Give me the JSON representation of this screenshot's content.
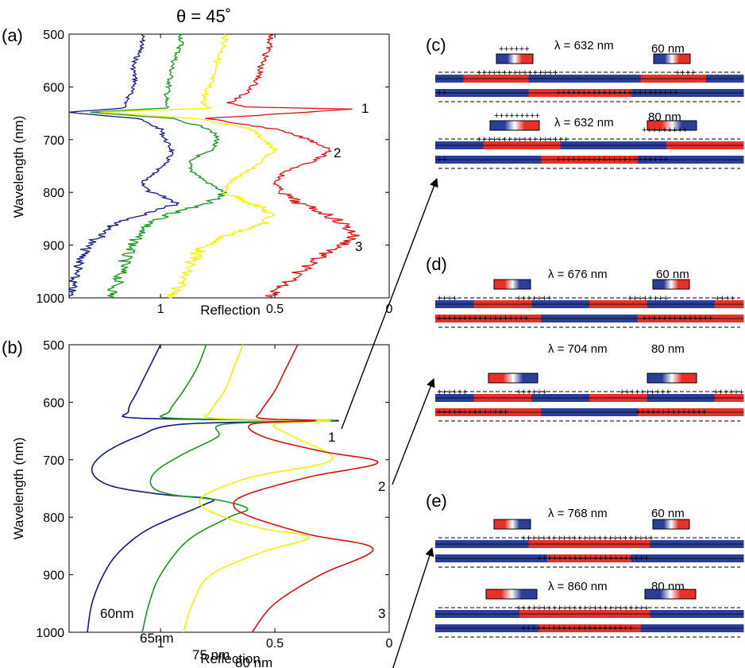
{
  "figure": {
    "theta_label": "θ = 45˚",
    "panel_labels": {
      "a": "(a)",
      "b": "(b)",
      "c": "(c)",
      "d": "(d)",
      "e": "(e)"
    },
    "colors": {
      "60nm": "#101a80",
      "65nm": "#17961f",
      "75nm": "#f5f000",
      "80nm": "#d81010",
      "field_red": "#e8302a",
      "field_blue": "#2a3e9a"
    }
  },
  "chart_data": [
    {
      "id": "a",
      "type": "line",
      "subtitle": "θ = 45˚",
      "xlabel": "Reflection",
      "ylabel": "Wavelength (nm)",
      "x_ticks": [
        "1",
        "0.5",
        "0"
      ],
      "y_ticks": [
        "500",
        "600",
        "700",
        "800",
        "900",
        "1000"
      ],
      "ylim": [
        500,
        1000
      ],
      "xlim": [
        1.4,
        0
      ],
      "x_axis_reversed": true,
      "annotations": [
        "1",
        "2",
        "3"
      ],
      "series": [
        {
          "color": "#101a80",
          "x": [
            1.08,
            1.08,
            1.1,
            1.12,
            1.11,
            1.13,
            1.15,
            1.16,
            1.4,
            1.1,
            1.0,
            0.98,
            0.95,
            0.97,
            1.02,
            1.08,
            1.05,
            0.92,
            1.05,
            1.2,
            1.25,
            1.32,
            1.34,
            1.38,
            1.4
          ],
          "y": [
            500,
            520,
            540,
            560,
            590,
            610,
            630,
            640,
            648,
            660,
            680,
            700,
            720,
            740,
            760,
            780,
            800,
            820,
            840,
            860,
            880,
            900,
            920,
            960,
            1000
          ]
        },
        {
          "color": "#17961f",
          "x": [
            0.91,
            0.91,
            0.93,
            0.95,
            0.96,
            0.97,
            0.98,
            0.97,
            1.32,
            0.95,
            0.78,
            0.75,
            0.78,
            0.88,
            0.86,
            0.8,
            0.72,
            0.8,
            0.95,
            1.05,
            1.1,
            1.12,
            1.15,
            1.18,
            1.22
          ],
          "y": [
            500,
            520,
            540,
            560,
            590,
            610,
            630,
            640,
            648,
            660,
            680,
            700,
            720,
            740,
            760,
            780,
            800,
            820,
            840,
            860,
            880,
            900,
            920,
            960,
            1000
          ]
        },
        {
          "color": "#f5f000",
          "x": [
            0.72,
            0.72,
            0.74,
            0.76,
            0.78,
            0.8,
            0.82,
            0.78,
            1.25,
            0.85,
            0.6,
            0.55,
            0.5,
            0.56,
            0.62,
            0.7,
            0.72,
            0.6,
            0.52,
            0.55,
            0.7,
            0.8,
            0.85,
            0.9,
            0.95
          ],
          "y": [
            500,
            520,
            540,
            560,
            590,
            610,
            630,
            640,
            648,
            660,
            680,
            700,
            720,
            740,
            760,
            780,
            800,
            820,
            840,
            860,
            880,
            900,
            920,
            960,
            1000
          ]
        },
        {
          "color": "#d81010",
          "x": [
            0.52,
            0.52,
            0.54,
            0.56,
            0.58,
            0.62,
            0.7,
            0.62,
            0.15,
            0.8,
            0.5,
            0.35,
            0.25,
            0.33,
            0.45,
            0.5,
            0.47,
            0.4,
            0.28,
            0.2,
            0.15,
            0.2,
            0.3,
            0.42,
            0.52
          ],
          "y": [
            500,
            520,
            540,
            560,
            590,
            610,
            630,
            638,
            642,
            660,
            680,
            700,
            720,
            740,
            760,
            780,
            800,
            820,
            840,
            860,
            880,
            900,
            920,
            960,
            1000
          ]
        }
      ]
    },
    {
      "id": "b",
      "type": "line",
      "xlabel": "Reflection",
      "ylabel": "Wavelength (nm)",
      "x_ticks": [
        "1",
        "0.5",
        "0"
      ],
      "y_ticks": [
        "500",
        "600",
        "700",
        "800",
        "900",
        "1000"
      ],
      "ylim": [
        500,
        1000
      ],
      "xlim": [
        1.4,
        0
      ],
      "x_axis_reversed": true,
      "annotations": [
        "1",
        "2",
        "3"
      ],
      "series": [
        {
          "name": "60nm",
          "color": "#101a80",
          "x": [
            1.0,
            1.05,
            1.1,
            1.14,
            1.08,
            0.22,
            0.9,
            1.1,
            1.25,
            1.3,
            1.22,
            1.0,
            0.78,
            0.82,
            1.05,
            1.18,
            1.25,
            1.3,
            1.32
          ],
          "y": [
            500,
            540,
            580,
            615,
            628,
            632,
            638,
            660,
            690,
            720,
            745,
            760,
            768,
            780,
            820,
            860,
            900,
            950,
            1000
          ]
        },
        {
          "name": "65nm",
          "color": "#17961f",
          "x": [
            0.8,
            0.84,
            0.9,
            0.96,
            0.94,
            0.24,
            0.72,
            0.75,
            0.9,
            1.02,
            1.04,
            0.96,
            0.75,
            0.62,
            0.7,
            0.88,
            1.0,
            1.05,
            1.08
          ],
          "y": [
            500,
            540,
            580,
            615,
            628,
            632,
            638,
            660,
            690,
            720,
            745,
            760,
            770,
            785,
            800,
            840,
            900,
            950,
            1000
          ]
        },
        {
          "name": "75 nm",
          "color": "#f5f000",
          "x": [
            0.64,
            0.68,
            0.72,
            0.78,
            0.76,
            0.26,
            0.5,
            0.42,
            0.25,
            0.6,
            0.8,
            0.82,
            0.72,
            0.55,
            0.35,
            0.55,
            0.78,
            0.86,
            0.9
          ],
          "y": [
            500,
            540,
            580,
            615,
            628,
            632,
            638,
            660,
            700,
            730,
            760,
            780,
            800,
            820,
            835,
            860,
            900,
            950,
            1000
          ]
        },
        {
          "name": "80 nm",
          "color": "#d81010",
          "x": [
            0.4,
            0.45,
            0.5,
            0.56,
            0.56,
            0.32,
            0.6,
            0.55,
            0.3,
            0.05,
            0.35,
            0.62,
            0.68,
            0.6,
            0.35,
            0.07,
            0.3,
            0.5,
            0.6
          ],
          "y": [
            500,
            540,
            580,
            615,
            628,
            632,
            638,
            660,
            685,
            705,
            730,
            760,
            780,
            800,
            830,
            855,
            900,
            950,
            1000
          ]
        }
      ]
    }
  ],
  "panel_a": {
    "xlabel": "Reflection",
    "ylabel": "Wavelength (nm)",
    "x_ticks": [
      "1",
      "0.5",
      "0"
    ],
    "y_ticks": [
      "500",
      "600",
      "700",
      "800",
      "900",
      "1000"
    ],
    "annotations": [
      "1",
      "2",
      "3"
    ]
  },
  "panel_b": {
    "xlabel": "Reflection",
    "ylabel": "Wavelength (nm)",
    "x_ticks": [
      "1",
      "0.5",
      "0"
    ],
    "y_ticks": [
      "500",
      "600",
      "700",
      "800",
      "900",
      "1000"
    ],
    "annotations": [
      "1",
      "2",
      "3"
    ],
    "series_labels": [
      "60nm",
      "65nm",
      "75 nm",
      "80 nm"
    ]
  },
  "field_panels": {
    "c": [
      {
        "lambda": "λ = 632 nm",
        "size": "60 nm"
      },
      {
        "lambda": "λ = 632 nm",
        "size": "80 nm"
      }
    ],
    "d": [
      {
        "lambda": "λ = 676 nm",
        "size": "60 nm"
      },
      {
        "lambda": "λ = 704 nm",
        "size": "80 nm"
      }
    ],
    "e": [
      {
        "lambda": "λ = 768 nm",
        "size": "60 nm"
      },
      {
        "lambda": "λ = 860 nm",
        "size": "80 nm"
      }
    ]
  }
}
